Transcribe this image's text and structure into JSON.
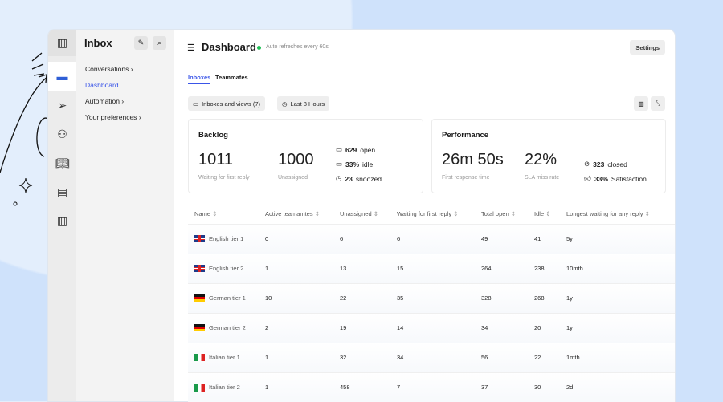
{
  "sidebar": {
    "title": "Inbox",
    "items": [
      {
        "label": "Conversations",
        "chevron": "›"
      },
      {
        "label": "Dashboard"
      },
      {
        "label": "Automation",
        "chevron": "›"
      },
      {
        "label": "Your preferences",
        "chevron": "›"
      }
    ]
  },
  "header": {
    "title": "Dashboard",
    "status": "Auto refreshes every 60s",
    "status_color": "#1fbf55",
    "settings_label": "Settings"
  },
  "tabs": [
    {
      "label": "Inboxes",
      "active": true
    },
    {
      "label": "Teammates"
    }
  ],
  "filters": {
    "inboxes": "Inboxes and views (7)",
    "time": "Last 8 Hours"
  },
  "accent": "#3a55e8",
  "backlog": {
    "title": "Backlog",
    "m1": {
      "value": "1011",
      "label": "Waiting for first reply"
    },
    "m2": {
      "value": "1000",
      "label": "Unassigned"
    },
    "open": {
      "value": "629",
      "label": "open"
    },
    "idle": {
      "value": "33%",
      "label": "idle"
    },
    "snoozed": {
      "value": "23",
      "label": "snoozed"
    }
  },
  "performance": {
    "title": "Performance",
    "m1": {
      "value": "26m 50s",
      "label": "First response time"
    },
    "m2": {
      "value": "22%",
      "label": "SLA miss rate"
    },
    "closed": {
      "value": "323",
      "label": "closed"
    },
    "satisfaction": {
      "value": "33%",
      "label": "Satisfaction"
    }
  },
  "table": {
    "columns": [
      "Name",
      "Active teamamtes",
      "Unassigned",
      "Waiting for first reply",
      "Total open",
      "Idle",
      "Longest waiting for any reply"
    ],
    "rows": [
      {
        "flag": "uk",
        "cells": [
          "English tier 1",
          "0",
          "6",
          "6",
          "49",
          "41",
          "5y"
        ]
      },
      {
        "flag": "uk",
        "cells": [
          "English tier 2",
          "1",
          "13",
          "15",
          "264",
          "238",
          "10mth"
        ]
      },
      {
        "flag": "de",
        "cells": [
          "German tier 1",
          "10",
          "22",
          "35",
          "328",
          "268",
          "1y"
        ]
      },
      {
        "flag": "de",
        "cells": [
          "German tier 2",
          "2",
          "19",
          "14",
          "34",
          "20",
          "1y"
        ]
      },
      {
        "flag": "it",
        "cells": [
          "Italian tier 1",
          "1",
          "32",
          "34",
          "56",
          "22",
          "1mth"
        ]
      },
      {
        "flag": "it",
        "cells": [
          "Italian tier 2",
          "1",
          "458",
          "7",
          "37",
          "30",
          "2d"
        ]
      }
    ]
  }
}
